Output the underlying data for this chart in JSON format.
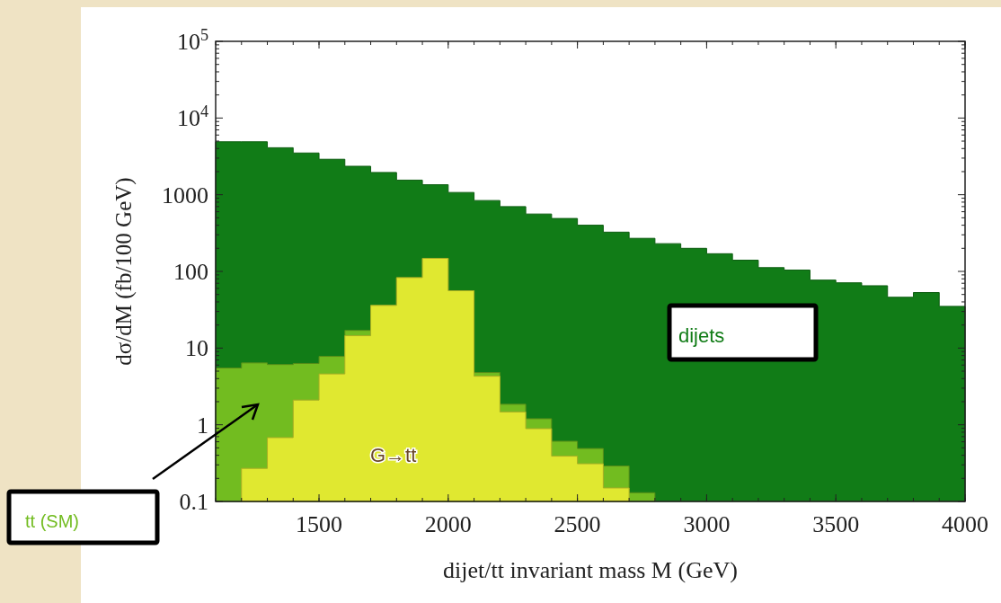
{
  "chart_data": {
    "type": "histogram",
    "xlabel": "dijet/tt invariant mass M (GeV)",
    "ylabel": "dσ/dM (fb/100 GeV)",
    "log": "y",
    "bins": [
      1100,
      1200,
      1300,
      1400,
      1500,
      1600,
      1700,
      1800,
      1900,
      2000,
      2100,
      2200,
      2300,
      2400,
      2500,
      2600,
      2700,
      2800,
      2900,
      3000,
      3100,
      3200,
      3300,
      3400,
      3500,
      3600,
      3700,
      3800,
      3900,
      4000
    ],
    "series": [
      {
        "name": "dijets",
        "color": "#117c17",
        "values": [
          4900,
          4900,
          4100,
          3500,
          2900,
          2350,
          1950,
          1550,
          1350,
          1070,
          840,
          700,
          560,
          490,
          400,
          325,
          270,
          230,
          200,
          170,
          140,
          112,
          104,
          77,
          71,
          65,
          46,
          53,
          35
        ]
      },
      {
        "name": "tt (SM)",
        "color": "#72bc20",
        "bins": [
          1100,
          1200,
          1300,
          1400,
          1500,
          1600,
          1700,
          1800,
          1900,
          2000,
          2100,
          2200,
          2300,
          2400,
          2500,
          2600,
          2700,
          2800
        ],
        "values": [
          5.5,
          6.4,
          6.1,
          6.3,
          7.8,
          17,
          36,
          83,
          148,
          56,
          4.8,
          1.85,
          1.2,
          0.61,
          0.49,
          0.29,
          0.13
        ]
      },
      {
        "name": "G→tt",
        "color": "#e0e830",
        "bins": [
          1200,
          1300,
          1400,
          1500,
          1600,
          1700,
          1800,
          1900,
          2000,
          2100,
          2200,
          2300,
          2400,
          2500,
          2600,
          2700
        ],
        "values": [
          0.27,
          0.68,
          2.1,
          4.6,
          14.5,
          36,
          83,
          148,
          56,
          4.3,
          1.47,
          0.89,
          0.39,
          0.31,
          0.15
        ]
      }
    ],
    "xlim": [
      1100,
      4000
    ],
    "xticks": [
      1500,
      2000,
      2500,
      3000,
      3500,
      4000
    ],
    "ylim": [
      0.1,
      100000
    ],
    "yticks": [
      0.1,
      1,
      10,
      100,
      1000,
      {
        "value": 10000,
        "label": "10$^{4}$"
      },
      {
        "value": 100000,
        "label": "10$^{5}$"
      }
    ],
    "grid": false
  }
}
